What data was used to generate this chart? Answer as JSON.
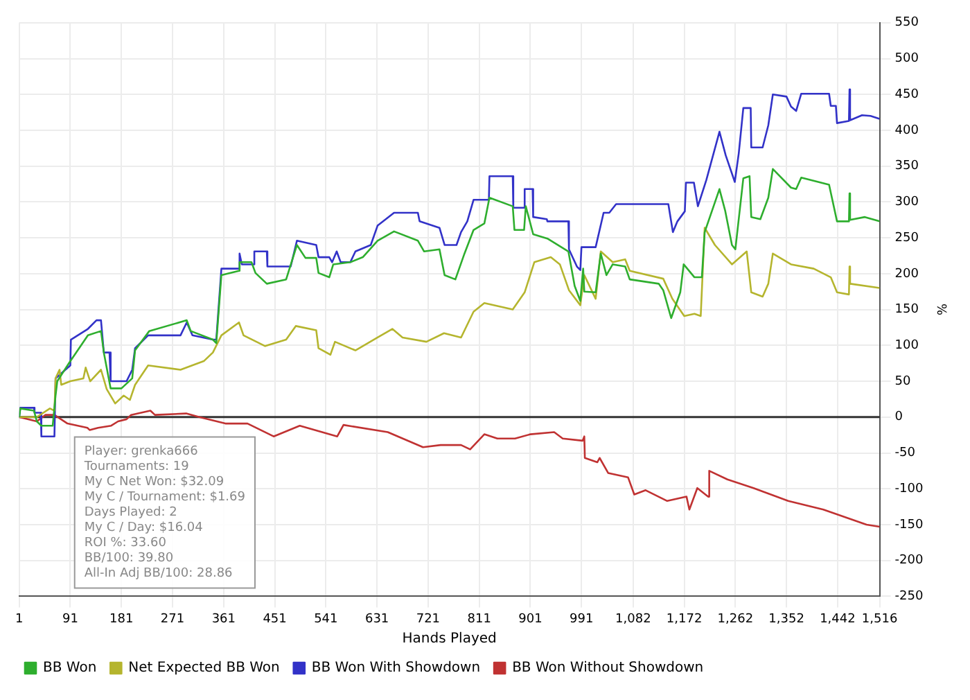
{
  "chart_data": {
    "type": "line",
    "xlabel": "Hands Played",
    "ylabel": "%",
    "xlim": [
      1,
      1516
    ],
    "xticks": [
      1,
      91,
      181,
      271,
      361,
      451,
      541,
      631,
      721,
      811,
      901,
      991,
      {
        "value": 1082,
        "label": "1,082"
      },
      {
        "value": 1172,
        "label": "1,172"
      },
      {
        "value": 1262,
        "label": "1,262"
      },
      {
        "value": 1352,
        "label": "1,352"
      },
      {
        "value": 1442,
        "label": "1,442"
      },
      {
        "value": 1516,
        "label": "1,516"
      }
    ],
    "ylim": [
      -250,
      550
    ],
    "yticks": [
      -250,
      -200,
      -150,
      -100,
      -50,
      0,
      50,
      100,
      150,
      200,
      250,
      300,
      350,
      400,
      450,
      500,
      550
    ],
    "grid": true,
    "legend": "bottom left",
    "marker": "none",
    "line_style": "solid",
    "ref_lines": [
      {
        "axis": "y",
        "value": 0,
        "color": "#333333"
      }
    ],
    "annotations": [
      "Player: grenka666",
      "Tournaments: 19",
      "My C Net Won: $32.09",
      "My C / Tournament: $1.69",
      "Days Played: 2",
      "My C / Day: $16.04",
      "ROI %: 33.60",
      "BB/100: 39.80",
      "All-In Adj BB/100: 28.86"
    ],
    "series": [
      {
        "name": "BB Won",
        "color": "#2eae2e",
        "x": [
          1,
          3,
          27,
          32,
          40,
          60,
          65,
          68,
          91,
          122,
          145,
          150,
          162,
          181,
          200,
          205,
          230,
          296,
          303,
          342,
          348,
          357,
          388,
          389,
          410,
          417,
          437,
          471,
          490,
          505,
          524,
          528,
          547,
          554,
          584,
          606,
          632,
          661,
          703,
          714,
          741,
          750,
          769,
          785,
          801,
          820,
          829,
          870,
          873,
          890,
          893,
          906,
          931,
          968,
          979,
          989,
          994,
          996,
          1016,
          1025,
          1035,
          1046,
          1068,
          1076,
          1127,
          1135,
          1149,
          1165,
          1171,
          1190,
          1203,
          1208,
          1234,
          1244,
          1256,
          1262,
          1276,
          1287,
          1290,
          1306,
          1320,
          1328,
          1360,
          1369,
          1378,
          1427,
          1441,
          1462,
          1463,
          1464,
          1490,
          1516
        ],
        "values": [
          0,
          12,
          9,
          -6,
          -12,
          -12,
          30,
          50,
          78,
          114,
          120,
          90,
          40,
          40,
          54,
          93,
          120,
          135,
          120,
          108,
          103,
          198,
          204,
          216,
          216,
          201,
          186,
          192,
          240,
          222,
          222,
          201,
          195,
          213,
          216,
          223,
          246,
          259,
          246,
          231,
          234,
          198,
          192,
          228,
          261,
          270,
          306,
          294,
          261,
          261,
          294,
          255,
          249,
          231,
          183,
          162,
          207,
          175,
          174,
          228,
          198,
          213,
          210,
          192,
          186,
          177,
          138,
          174,
          213,
          195,
          195,
          258,
          318,
          288,
          240,
          234,
          333,
          336,
          279,
          276,
          306,
          346,
          320,
          318,
          334,
          324,
          273,
          273,
          312,
          275,
          279,
          273
        ]
      },
      {
        "name": "Net Expected BB Won",
        "color": "#b5b52e",
        "x": [
          1,
          32,
          55,
          63,
          65,
          72,
          75,
          91,
          114,
          118,
          126,
          145,
          155,
          170,
          185,
          196,
          205,
          228,
          285,
          326,
          342,
          357,
          388,
          396,
          434,
          471,
          488,
          524,
          528,
          549,
          557,
          593,
          632,
          658,
          676,
          718,
          749,
          779,
          801,
          820,
          870,
          891,
          908,
          937,
          953,
          969,
          989,
          996,
          1016,
          1025,
          1046,
          1068,
          1076,
          1135,
          1151,
          1172,
          1190,
          1201,
          1208,
          1226,
          1256,
          1282,
          1290,
          1310,
          1320,
          1328,
          1360,
          1400,
          1430,
          1441,
          1462,
          1463,
          1464,
          1516
        ],
        "values": [
          0,
          0,
          12,
          9,
          54,
          66,
          45,
          50,
          54,
          69,
          50,
          66,
          39,
          19,
          30,
          24,
          45,
          72,
          66,
          78,
          90,
          114,
          132,
          114,
          99,
          108,
          127,
          121,
          96,
          87,
          105,
          93,
          111,
          123,
          111,
          105,
          117,
          111,
          147,
          159,
          150,
          174,
          216,
          223,
          213,
          177,
          156,
          198,
          165,
          231,
          216,
          220,
          204,
          193,
          165,
          141,
          144,
          141,
          264,
          240,
          213,
          231,
          174,
          168,
          186,
          228,
          213,
          207,
          195,
          174,
          171,
          210,
          186,
          180
        ]
      },
      {
        "name": "BB Won With Showdown",
        "color": "#3232c8",
        "x": [
          1,
          3,
          27,
          28,
          39,
          40,
          63,
          65,
          91,
          92,
          122,
          137,
          145,
          150,
          160,
          162,
          190,
          200,
          205,
          228,
          285,
          296,
          306,
          342,
          348,
          357,
          388,
          389,
          393,
          414,
          415,
          437,
          438,
          479,
          490,
          524,
          528,
          547,
          552,
          560,
          567,
          584,
          593,
          620,
          632,
          661,
          703,
          706,
          741,
          750,
          771,
          779,
          790,
          801,
          828,
          829,
          870,
          871,
          890,
          891,
          905,
          906,
          930,
          931,
          968,
          969,
          983,
          989,
          991,
          1016,
          1030,
          1040,
          1052,
          1139,
          1144,
          1152,
          1160,
          1173,
          1175,
          1189,
          1196,
          1211,
          1234,
          1245,
          1261,
          1268,
          1276,
          1289,
          1290,
          1310,
          1320,
          1328,
          1352,
          1360,
          1369,
          1378,
          1427,
          1430,
          1439,
          1441,
          1462,
          1463,
          1464,
          1485,
          1500,
          1516
        ],
        "values": [
          0,
          13,
          13,
          6,
          6,
          -27,
          -27,
          54,
          72,
          108,
          123,
          135,
          135,
          90,
          90,
          50,
          50,
          66,
          96,
          114,
          114,
          132,
          114,
          108,
          108,
          207,
          207,
          228,
          213,
          213,
          231,
          231,
          210,
          210,
          246,
          240,
          223,
          223,
          216,
          231,
          216,
          216,
          231,
          240,
          267,
          285,
          285,
          273,
          264,
          240,
          240,
          258,
          273,
          303,
          303,
          336,
          336,
          292,
          292,
          318,
          318,
          279,
          276,
          273,
          273,
          234,
          210,
          205,
          237,
          237,
          285,
          285,
          297,
          297,
          297,
          258,
          273,
          287,
          327,
          327,
          294,
          331,
          398,
          365,
          328,
          368,
          431,
          431,
          376,
          376,
          407,
          450,
          447,
          433,
          427,
          451,
          451,
          434,
          434,
          410,
          413,
          457,
          414,
          421,
          420,
          416
        ]
      },
      {
        "name": "BB Won Without Showdown",
        "color": "#c03232",
        "x": [
          1,
          32,
          47,
          63,
          86,
          121,
          125,
          140,
          163,
          175,
          190,
          198,
          232,
          240,
          295,
          318,
          364,
          403,
          449,
          495,
          561,
          572,
          650,
          712,
          743,
          779,
          795,
          820,
          843,
          874,
          901,
          943,
          958,
          993,
          996,
          997,
          1019,
          1023,
          1038,
          1073,
          1084,
          1104,
          1142,
          1176,
          1181,
          1195,
          1214,
          1216,
          1248,
          1294,
          1355,
          1417,
          1493,
          1516
        ],
        "values": [
          0,
          -6,
          3,
          3,
          -9,
          -15,
          -18,
          -15,
          -12,
          -6,
          -3,
          3,
          9,
          3,
          5,
          0,
          -9,
          -9,
          -27,
          -12,
          -27,
          -11,
          -21,
          -42,
          -39,
          -39,
          -45,
          -24,
          -30,
          -30,
          -24,
          -21,
          -30,
          -33,
          -27,
          -57,
          -63,
          -57,
          -78,
          -84,
          -108,
          -102,
          -117,
          -111,
          -129,
          -99,
          -111,
          -75,
          -87,
          -99,
          -117,
          -129,
          -150,
          -153
        ]
      }
    ]
  }
}
